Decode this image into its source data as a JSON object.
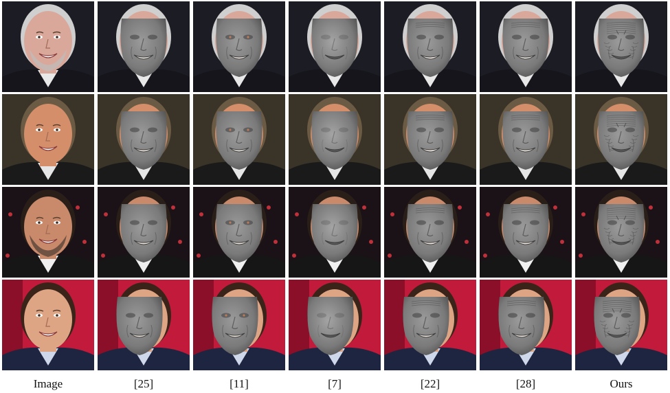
{
  "columns": [
    {
      "label": "Image",
      "kind": "photo"
    },
    {
      "label": "[25]",
      "kind": "smooth"
    },
    {
      "label": "[11]",
      "kind": "textured-eyes"
    },
    {
      "label": "[7]",
      "kind": "very-smooth"
    },
    {
      "label": "[22]",
      "kind": "detailed"
    },
    {
      "label": "[28]",
      "kind": "detailed"
    },
    {
      "label": "Ours",
      "kind": "fine-wrinkles"
    }
  ],
  "rows": [
    {
      "subject": "older-bald-man",
      "skin": "#d9a89a",
      "hair": "#cfcfcf",
      "bg": "#1c1c24",
      "suit": "#15151b",
      "shirt": "#e8e8e8",
      "beard": true
    },
    {
      "subject": "smiling-man",
      "skin": "#d48f6a",
      "hair": "#6b5a44",
      "bg": "#3a3428",
      "suit": "#1a1a1a",
      "shirt": "#e6e6e6",
      "beard": false
    },
    {
      "subject": "dark-hair-man",
      "skin": "#c98a6c",
      "hair": "#2a1f18",
      "bg": "#1a1216",
      "suit": "#161616",
      "shirt": "#f0f0f0",
      "beard": true
    },
    {
      "subject": "young-man",
      "skin": "#dea585",
      "hair": "#3a2419",
      "bg": "#c11a3a",
      "suit": "#1e2540",
      "shirt": "#cfd7ea",
      "beard": false
    }
  ],
  "colors": {
    "mesh_gray": "#7a7a7a",
    "mesh_dark": "#555555",
    "mesh_light": "#9a9a9a"
  }
}
